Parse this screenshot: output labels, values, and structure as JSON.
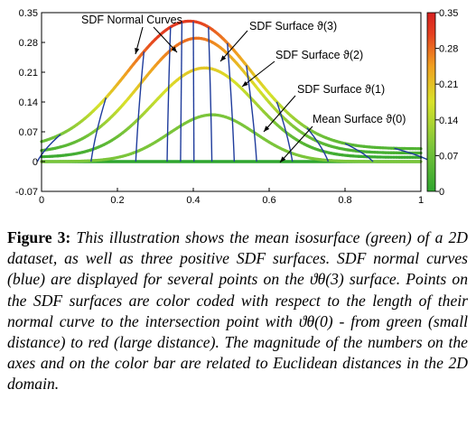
{
  "chart_data": {
    "type": "line",
    "title": "",
    "xlabel": "",
    "ylabel": "",
    "xlim": [
      0,
      1
    ],
    "ylim": [
      -0.07,
      0.35
    ],
    "x_ticks": [
      "0",
      "0.2",
      "0.4",
      "0.6",
      "0.8",
      "1"
    ],
    "x_tick_values": [
      0,
      0.2,
      0.4,
      0.6,
      0.8,
      1
    ],
    "y_ticks": [
      "-0.07",
      "0",
      "0.07",
      "0.14",
      "0.21",
      "0.28",
      "0.35"
    ],
    "y_tick_values": [
      -0.07,
      0,
      0.07,
      0.14,
      0.21,
      0.28,
      0.35
    ],
    "series": [
      {
        "key": "mean",
        "peak_x": 0.45,
        "peak_y": 0.11,
        "width": 0.16,
        "baseline": 0
      },
      {
        "key": "s1",
        "peak_x": 0.43,
        "peak_y": 0.22,
        "width": 0.19,
        "baseline": 0.01
      },
      {
        "key": "s2",
        "peak_x": 0.41,
        "peak_y": 0.29,
        "width": 0.21,
        "baseline": 0.02
      },
      {
        "key": "s3",
        "peak_x": 0.39,
        "peak_y": 0.33,
        "width": 0.23,
        "baseline": 0.03
      }
    ],
    "normal_curves_x": [
      0.05,
      0.17,
      0.27,
      0.34,
      0.37,
      0.4,
      0.44,
      0.49,
      0.54,
      0.62,
      0.7,
      0.8,
      0.93
    ],
    "colorbar": {
      "ticks": [
        "0",
        "0.07",
        "0.14",
        "0.21",
        "0.28",
        "0.35"
      ],
      "tick_values": [
        0,
        0.07,
        0.14,
        0.21,
        0.28,
        0.35
      ],
      "range": [
        0,
        0.35
      ],
      "colors": [
        "#2fa52f",
        "#7bc53a",
        "#d8e22a",
        "#f0a020",
        "#e54020",
        "#d62020"
      ]
    },
    "normal_curve_color": "#1f3c9c",
    "annotations": {
      "normal_curves": "SDF Normal Curves",
      "surface3": "SDF Surface ϑ(3)",
      "surface2": "SDF Surface ϑ(2)",
      "surface1": "SDF Surface ϑ(1)",
      "mean": "Mean Surface ϑ(0)"
    }
  },
  "caption": {
    "label": "Figure 3:",
    "text": "This illustration shows the mean isosurface (green) of a 2D dataset, as well as three positive SDF surfaces. SDF normal curves (blue) are displayed for several points on the ϑθ(3) surface. Points on the SDF surfaces are color coded with respect to the length of their normal curve to the intersection point with ϑθ(0) - from green (small distance) to red (large distance). The magnitude of the numbers on the axes and on the color bar are related to Euclidean distances in the 2D domain."
  }
}
